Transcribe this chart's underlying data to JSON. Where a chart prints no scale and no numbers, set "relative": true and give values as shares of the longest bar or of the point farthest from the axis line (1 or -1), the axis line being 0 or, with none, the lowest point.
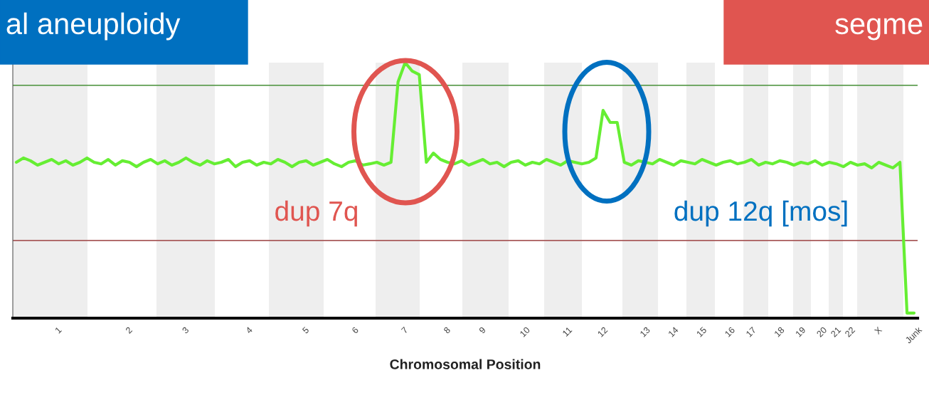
{
  "chart_data": {
    "type": "line",
    "relative": true,
    "xlabel": "Chromosomal Position",
    "annotations": [
      "al aneuploidy",
      "segme",
      "dup 7q",
      "dup 12q [mos]"
    ],
    "categories": [
      null,
      null,
      null,
      null,
      null,
      null,
      "1",
      null,
      null,
      null,
      null,
      null,
      null,
      null,
      null,
      null,
      "2",
      null,
      null,
      null,
      null,
      null,
      null,
      null,
      "3",
      null,
      null,
      null,
      null,
      null,
      null,
      null,
      null,
      "4",
      null,
      null,
      null,
      null,
      null,
      null,
      null,
      "5",
      null,
      null,
      null,
      null,
      null,
      null,
      "6",
      null,
      null,
      null,
      null,
      null,
      null,
      "7",
      null,
      null,
      null,
      null,
      null,
      "8",
      null,
      null,
      null,
      null,
      "9",
      null,
      null,
      null,
      null,
      null,
      "10",
      null,
      null,
      null,
      null,
      null,
      "11",
      null,
      null,
      null,
      null,
      "12",
      null,
      null,
      null,
      null,
      null,
      "13",
      null,
      null,
      null,
      "14",
      null,
      null,
      null,
      "15",
      null,
      null,
      null,
      "16",
      null,
      null,
      "17",
      null,
      null,
      null,
      "18",
      null,
      null,
      "19",
      null,
      null,
      "20",
      null,
      "21",
      null,
      "22",
      null,
      null,
      null,
      "X",
      null,
      null,
      null,
      null,
      "Junk"
    ],
    "series": [
      {
        "color": "#66ee33",
        "values": [
          0.61,
          0.627,
          0.616,
          0.599,
          0.61,
          0.621,
          0.604,
          0.616,
          0.599,
          0.61,
          0.627,
          0.61,
          0.604,
          0.621,
          0.599,
          0.616,
          0.61,
          0.593,
          0.61,
          0.621,
          0.604,
          0.616,
          0.599,
          0.61,
          0.627,
          0.61,
          0.599,
          0.616,
          0.604,
          0.61,
          0.621,
          0.593,
          0.61,
          0.616,
          0.599,
          0.61,
          0.604,
          0.621,
          0.61,
          0.593,
          0.61,
          0.616,
          0.599,
          0.61,
          0.621,
          0.604,
          0.593,
          0.61,
          0.616,
          0.599,
          0.604,
          0.61,
          0.599,
          0.61,
          0.925,
          1.0,
          0.967,
          0.953,
          0.61,
          0.646,
          0.621,
          0.61,
          0.604,
          0.616,
          0.599,
          0.61,
          0.621,
          0.604,
          0.61,
          0.593,
          0.61,
          0.616,
          0.599,
          0.61,
          0.604,
          0.621,
          0.61,
          0.599,
          0.616,
          0.61,
          0.604,
          0.61,
          0.627,
          0.813,
          0.766,
          0.766,
          0.61,
          0.599,
          0.616,
          0.61,
          0.604,
          0.621,
          0.61,
          0.599,
          0.616,
          0.61,
          0.604,
          0.621,
          0.61,
          0.599,
          0.61,
          0.616,
          0.604,
          0.61,
          0.621,
          0.599,
          0.61,
          0.604,
          0.616,
          0.61,
          0.599,
          0.61,
          0.604,
          0.616,
          0.599,
          0.61,
          0.604,
          0.593,
          0.61,
          0.599,
          0.604,
          0.588,
          0.61,
          0.599,
          0.588,
          0.61,
          0.02,
          0.02
        ]
      }
    ],
    "ref_lines": [
      {
        "axis": "y",
        "value": 0.911,
        "color": "#5f9e52"
      },
      {
        "axis": "y",
        "value": 0.304,
        "color": "#a85a5a"
      }
    ],
    "grid": false,
    "legend": false,
    "marker": "none",
    "line_style": "solid",
    "tick_labels": "x"
  }
}
